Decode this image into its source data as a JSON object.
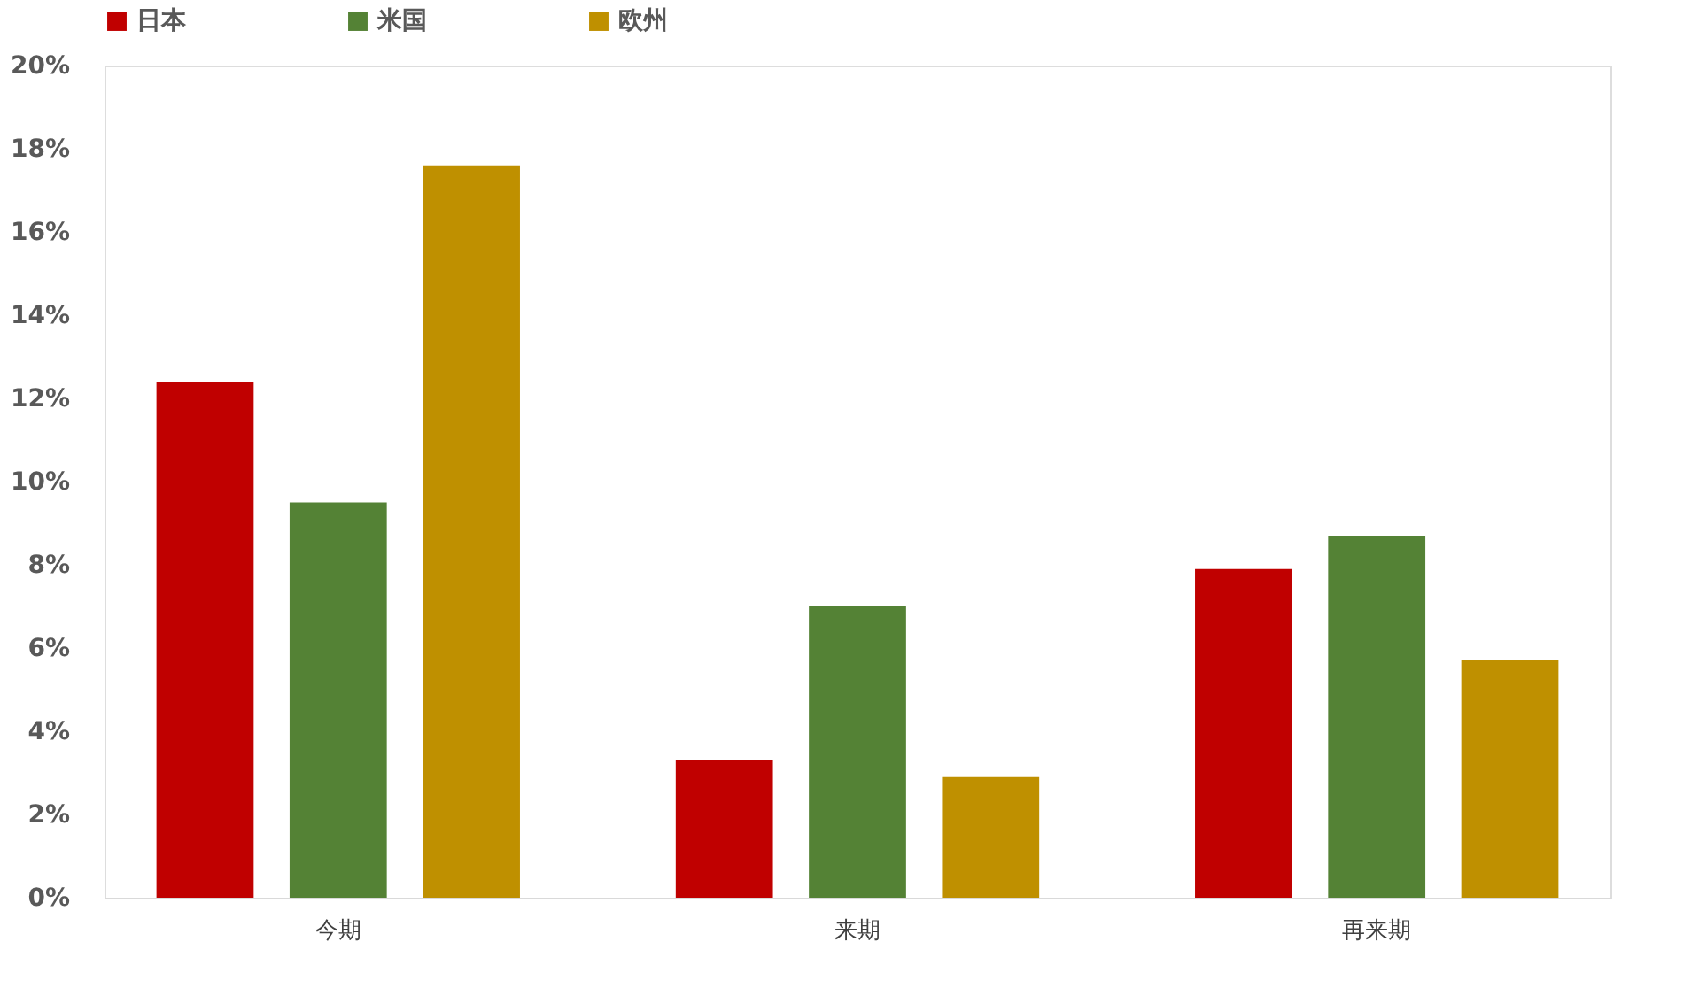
{
  "chart_data": {
    "type": "bar",
    "categories": [
      "今期",
      "来期",
      "再来期"
    ],
    "series": [
      {
        "name": "日本",
        "color": "#c00000",
        "values": [
          12.4,
          3.3,
          7.9
        ]
      },
      {
        "name": "米国",
        "color": "#548235",
        "values": [
          9.5,
          7.0,
          8.7
        ]
      },
      {
        "name": "欧州",
        "color": "#bf9000",
        "values": [
          17.6,
          2.9,
          5.7
        ]
      }
    ],
    "ylim": [
      0,
      20
    ],
    "yticks": [
      {
        "value": 0,
        "label": "0%"
      },
      {
        "value": 2,
        "label": "2%"
      },
      {
        "value": 4,
        "label": "4%"
      },
      {
        "value": 6,
        "label": "6%"
      },
      {
        "value": 8,
        "label": "8%"
      },
      {
        "value": 10,
        "label": "10%"
      },
      {
        "value": 12,
        "label": "12%"
      },
      {
        "value": 14,
        "label": "14%"
      },
      {
        "value": 16,
        "label": "16%"
      },
      {
        "value": 18,
        "label": "18%"
      },
      {
        "value": 20,
        "label": "20%"
      }
    ],
    "grid": false,
    "legend": "top"
  }
}
